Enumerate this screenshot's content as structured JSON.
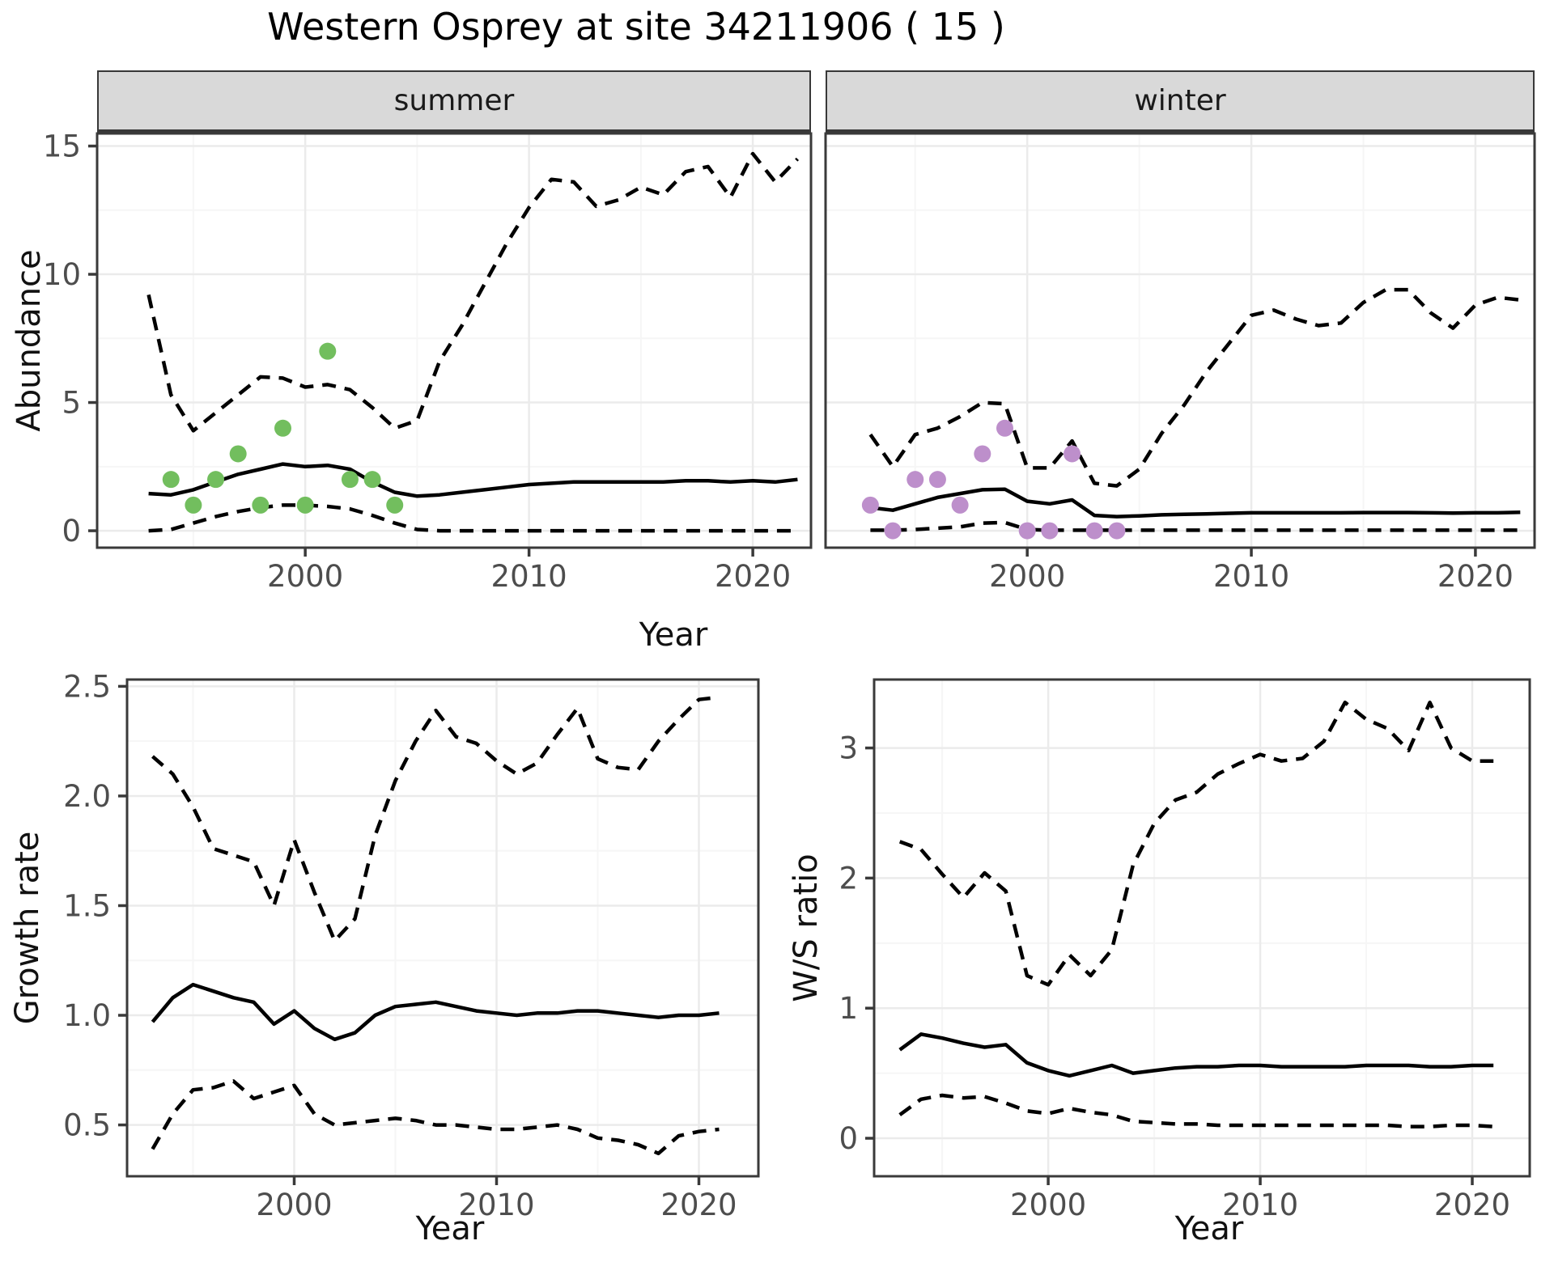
{
  "title": "Western Osprey at site 34211906 ( 15 )",
  "colors": {
    "background": "#ffffff",
    "grid_major": "#EBEBEB",
    "grid_minor": "#F6F6F6",
    "border": "#3A3A3A",
    "strip_bg": "#D9D9D9",
    "line": "#000000",
    "tick_text": "#4d4d4d",
    "summer_points": "#72BE5E",
    "winter_points": "#BD8FCB"
  },
  "chart_data": [
    {
      "id": "abundance_summer",
      "type": "line",
      "facet_label": "summer",
      "xlabel": "Year",
      "ylabel": "Abundance",
      "x_domain": [
        1990.7,
        2022.6
      ],
      "y_domain": [
        -0.66,
        15.49
      ],
      "x_ticks": [
        2000,
        2010,
        2020
      ],
      "x_tick_labels": [
        "2000",
        "2010",
        "2020"
      ],
      "x_minor": [
        1995,
        2005,
        2015
      ],
      "y_ticks": [
        0,
        5,
        10,
        15
      ],
      "y_tick_labels": [
        "0",
        "5",
        "10",
        "15"
      ],
      "y_minor": [
        2.5,
        7.5,
        12.5
      ],
      "years": [
        1993,
        1994,
        1995,
        1996,
        1997,
        1998,
        1999,
        2000,
        2001,
        2002,
        2003,
        2004,
        2005,
        2006,
        2007,
        2008,
        2009,
        2010,
        2011,
        2012,
        2013,
        2014,
        2015,
        2016,
        2017,
        2018,
        2019,
        2020,
        2021,
        2022
      ],
      "series": [
        {
          "name": "upper_95ci",
          "style": "dashed",
          "values": [
            9.2,
            5.3,
            3.9,
            4.6,
            5.3,
            6.0,
            5.95,
            5.6,
            5.7,
            5.5,
            4.8,
            4.0,
            4.3,
            6.6,
            8.0,
            9.6,
            11.2,
            12.6,
            13.7,
            13.6,
            12.65,
            12.9,
            13.4,
            13.1,
            14.0,
            14.2,
            13.0,
            14.7,
            13.6,
            14.5
          ]
        },
        {
          "name": "median",
          "style": "solid",
          "values": [
            1.45,
            1.4,
            1.6,
            1.9,
            2.2,
            2.4,
            2.6,
            2.5,
            2.55,
            2.4,
            1.9,
            1.5,
            1.35,
            1.4,
            1.5,
            1.6,
            1.7,
            1.8,
            1.85,
            1.9,
            1.9,
            1.9,
            1.9,
            1.9,
            1.95,
            1.95,
            1.9,
            1.95,
            1.9,
            2.0
          ]
        },
        {
          "name": "lower_95ci",
          "style": "dashed",
          "values": [
            0.0,
            0.05,
            0.3,
            0.55,
            0.75,
            0.9,
            1.0,
            1.0,
            0.95,
            0.85,
            0.6,
            0.3,
            0.05,
            0.0,
            0.0,
            0.0,
            0.0,
            0.0,
            0.0,
            0.0,
            0.0,
            0.0,
            0.0,
            0.0,
            0.0,
            0.0,
            0.0,
            0.0,
            0.0,
            0.0
          ]
        }
      ],
      "observations": {
        "years": [
          1994,
          1995,
          1996,
          1997,
          1998,
          1999,
          2000,
          2001,
          2002,
          2003,
          2004
        ],
        "values": [
          2,
          1,
          2,
          3,
          1,
          4,
          1,
          7,
          2,
          2,
          1
        ],
        "color": "#72BE5E"
      }
    },
    {
      "id": "abundance_winter",
      "type": "line",
      "facet_label": "winter",
      "xlabel": "Year",
      "ylabel": "Abundance",
      "x_domain": [
        1991.0,
        2022.64
      ],
      "y_domain": [
        -0.66,
        15.49
      ],
      "x_ticks": [
        2000,
        2010,
        2020
      ],
      "x_tick_labels": [
        "2000",
        "2010",
        "2020"
      ],
      "x_minor": [
        1995,
        2005,
        2015
      ],
      "y_ticks": [
        0,
        5,
        10,
        15
      ],
      "y_tick_labels": [
        "",
        "",
        "",
        ""
      ],
      "y_minor": [
        2.5,
        7.5,
        12.5
      ],
      "years": [
        1993,
        1994,
        1995,
        1996,
        1997,
        1998,
        1999,
        2000,
        2001,
        2002,
        2003,
        2004,
        2005,
        2006,
        2007,
        2008,
        2009,
        2010,
        2011,
        2012,
        2013,
        2014,
        2015,
        2016,
        2017,
        2018,
        2019,
        2020,
        2021,
        2022
      ],
      "series": [
        {
          "name": "upper_95ci",
          "style": "dashed",
          "values": [
            3.75,
            2.5,
            3.75,
            4.0,
            4.45,
            5.0,
            4.95,
            2.45,
            2.45,
            3.5,
            1.85,
            1.75,
            2.4,
            3.8,
            4.9,
            6.2,
            7.3,
            8.4,
            8.6,
            8.25,
            8.0,
            8.1,
            8.9,
            9.4,
            9.4,
            8.5,
            7.9,
            8.8,
            9.1,
            9.0
          ]
        },
        {
          "name": "median",
          "style": "solid",
          "values": [
            0.9,
            0.8,
            1.05,
            1.3,
            1.45,
            1.6,
            1.62,
            1.15,
            1.05,
            1.2,
            0.6,
            0.55,
            0.58,
            0.62,
            0.64,
            0.66,
            0.68,
            0.7,
            0.7,
            0.7,
            0.7,
            0.7,
            0.71,
            0.71,
            0.71,
            0.7,
            0.69,
            0.7,
            0.7,
            0.72
          ]
        },
        {
          "name": "lower_95ci",
          "style": "dashed",
          "values": [
            0.02,
            0.02,
            0.05,
            0.1,
            0.15,
            0.3,
            0.32,
            0.05,
            0.02,
            0.02,
            0.02,
            0.02,
            0.02,
            0.02,
            0.02,
            0.02,
            0.02,
            0.02,
            0.02,
            0.02,
            0.02,
            0.02,
            0.02,
            0.02,
            0.02,
            0.02,
            0.02,
            0.02,
            0.02,
            0.02
          ]
        }
      ],
      "observations": {
        "years": [
          1993,
          1994,
          1995,
          1996,
          1997,
          1998,
          1999,
          2000,
          2001,
          2002,
          2003,
          2004
        ],
        "values": [
          1,
          0,
          2,
          2,
          1,
          3,
          4,
          0,
          0,
          3,
          0,
          0
        ],
        "color": "#BD8FCB"
      }
    },
    {
      "id": "growth_rate",
      "type": "line",
      "facet_label": "",
      "xlabel": "Year",
      "ylabel": "Growth rate",
      "x_domain": [
        1991.74,
        2022.94
      ],
      "y_domain": [
        0.266,
        2.531
      ],
      "x_ticks": [
        2000,
        2010,
        2020
      ],
      "x_tick_labels": [
        "2000",
        "2010",
        "2020"
      ],
      "x_minor": [
        1995,
        2005,
        2015
      ],
      "y_ticks": [
        0.5,
        1.0,
        1.5,
        2.0,
        2.5
      ],
      "y_tick_labels": [
        "0.5",
        "1.0",
        "1.5",
        "2.0",
        "2.5"
      ],
      "y_minor": [
        0.75,
        1.25,
        1.75,
        2.25
      ],
      "years": [
        1993,
        1994,
        1995,
        1996,
        1997,
        1998,
        1999,
        2000,
        2001,
        2002,
        2003,
        2004,
        2005,
        2006,
        2007,
        2008,
        2009,
        2010,
        2011,
        2012,
        2013,
        2014,
        2015,
        2016,
        2017,
        2018,
        2019,
        2020,
        2021
      ],
      "series": [
        {
          "name": "upper_95ci",
          "style": "dashed",
          "values": [
            2.18,
            2.1,
            1.95,
            1.76,
            1.73,
            1.7,
            1.5,
            1.8,
            1.56,
            1.34,
            1.44,
            1.82,
            2.07,
            2.25,
            2.39,
            2.27,
            2.24,
            2.16,
            2.1,
            2.15,
            2.28,
            2.4,
            2.17,
            2.13,
            2.12,
            2.25,
            2.35,
            2.44,
            2.45
          ]
        },
        {
          "name": "median",
          "style": "solid",
          "values": [
            0.97,
            1.08,
            1.14,
            1.11,
            1.08,
            1.06,
            0.96,
            1.02,
            0.94,
            0.89,
            0.92,
            1.0,
            1.04,
            1.05,
            1.06,
            1.04,
            1.02,
            1.01,
            1.0,
            1.01,
            1.01,
            1.02,
            1.02,
            1.01,
            1.0,
            0.99,
            1.0,
            1.0,
            1.01
          ]
        },
        {
          "name": "lower_95ci",
          "style": "dashed",
          "values": [
            0.39,
            0.55,
            0.66,
            0.67,
            0.7,
            0.62,
            0.65,
            0.68,
            0.55,
            0.5,
            0.51,
            0.52,
            0.53,
            0.52,
            0.5,
            0.5,
            0.49,
            0.48,
            0.48,
            0.49,
            0.5,
            0.48,
            0.44,
            0.43,
            0.41,
            0.37,
            0.45,
            0.47,
            0.48
          ]
        }
      ]
    },
    {
      "id": "ws_ratio",
      "type": "line",
      "facet_label": "",
      "xlabel": "Year",
      "ylabel": "W/S ratio",
      "x_domain": [
        1991.79,
        2022.71
      ],
      "y_domain": [
        -0.292,
        3.526
      ],
      "x_ticks": [
        2000,
        2010,
        2020
      ],
      "x_tick_labels": [
        "2000",
        "2010",
        "2020"
      ],
      "x_minor": [
        1995,
        2005,
        2015
      ],
      "y_ticks": [
        0,
        1,
        2,
        3
      ],
      "y_tick_labels": [
        "0",
        "1",
        "2",
        "3"
      ],
      "y_minor": [
        0.5,
        1.5,
        2.5
      ],
      "years": [
        1993,
        1994,
        1995,
        1996,
        1997,
        1998,
        1999,
        2000,
        2001,
        2002,
        2003,
        2004,
        2005,
        2006,
        2007,
        2008,
        2009,
        2010,
        2011,
        2012,
        2013,
        2014,
        2015,
        2016,
        2017,
        2018,
        2019,
        2020,
        2021
      ],
      "series": [
        {
          "name": "upper_95ci",
          "style": "dashed",
          "values": [
            2.28,
            2.22,
            2.03,
            1.85,
            2.04,
            1.9,
            1.25,
            1.18,
            1.41,
            1.25,
            1.45,
            2.1,
            2.42,
            2.6,
            2.66,
            2.8,
            2.88,
            2.95,
            2.9,
            2.92,
            3.05,
            3.35,
            3.22,
            3.15,
            2.98,
            3.35,
            3.0,
            2.9,
            2.9
          ]
        },
        {
          "name": "median",
          "style": "solid",
          "values": [
            0.68,
            0.8,
            0.77,
            0.73,
            0.7,
            0.72,
            0.58,
            0.52,
            0.48,
            0.52,
            0.56,
            0.5,
            0.52,
            0.54,
            0.55,
            0.55,
            0.56,
            0.56,
            0.55,
            0.55,
            0.55,
            0.55,
            0.56,
            0.56,
            0.56,
            0.55,
            0.55,
            0.56,
            0.56
          ]
        },
        {
          "name": "lower_95ci",
          "style": "dashed",
          "values": [
            0.18,
            0.3,
            0.33,
            0.31,
            0.32,
            0.27,
            0.21,
            0.19,
            0.23,
            0.2,
            0.18,
            0.13,
            0.12,
            0.11,
            0.11,
            0.1,
            0.1,
            0.1,
            0.1,
            0.1,
            0.1,
            0.1,
            0.1,
            0.1,
            0.09,
            0.09,
            0.1,
            0.1,
            0.09
          ]
        }
      ]
    }
  ],
  "axis_titles": {
    "x_top": "Year",
    "x_growth": "Year",
    "x_ws": "Year",
    "y_abundance": "Abundance",
    "y_growth": "Growth rate",
    "y_ws": "W/S ratio"
  }
}
